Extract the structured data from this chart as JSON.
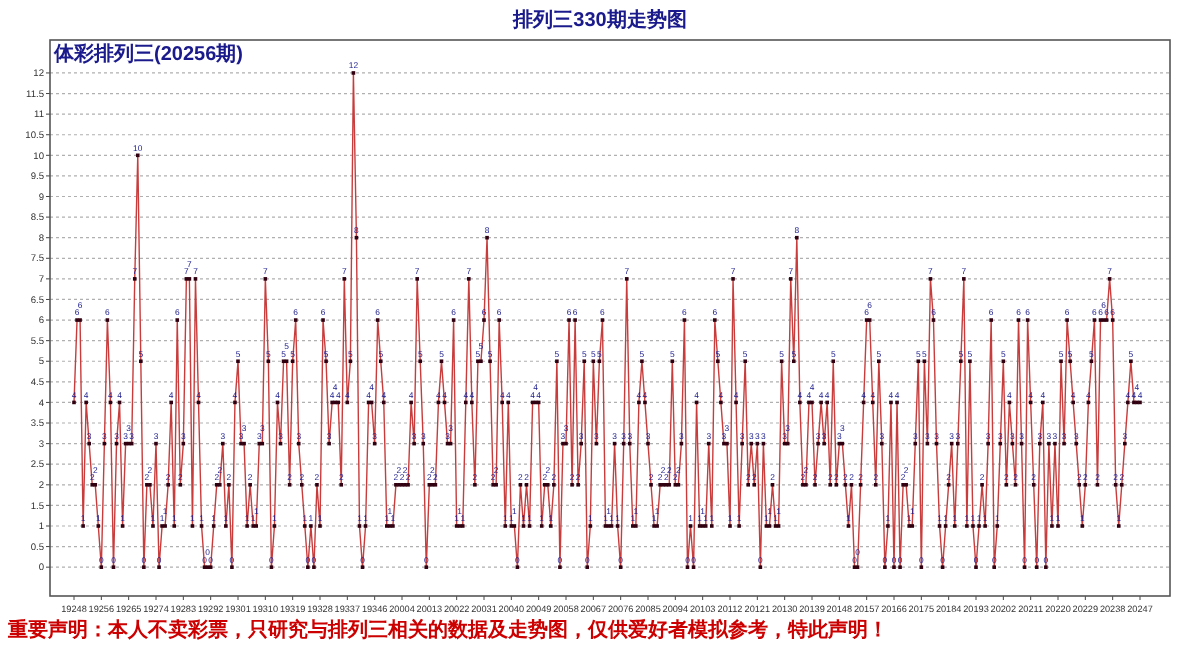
{
  "chart_data": {
    "type": "line",
    "title": "排列三330期走势图",
    "subtitle": "体彩排列三(20256期)",
    "annotations": [
      "重要声明：本人不卖彩票，只研究与排列三相关的数据及走势图，仅供爱好者模拟参考，特此声明！"
    ],
    "categories": [
      "19248",
      null,
      null,
      null,
      null,
      null,
      null,
      null,
      null,
      "19256",
      null,
      null,
      null,
      null,
      null,
      null,
      null,
      null,
      "19265",
      null,
      null,
      null,
      null,
      null,
      null,
      null,
      null,
      "19274",
      null,
      null,
      null,
      null,
      null,
      null,
      null,
      null,
      "19283",
      null,
      null,
      null,
      null,
      null,
      null,
      null,
      null,
      "19292",
      null,
      null,
      null,
      null,
      null,
      null,
      null,
      null,
      "19301",
      null,
      null,
      null,
      null,
      null,
      null,
      null,
      null,
      "19310",
      null,
      null,
      null,
      null,
      null,
      null,
      null,
      null,
      "19319",
      null,
      null,
      null,
      null,
      null,
      null,
      null,
      null,
      "19328",
      null,
      null,
      null,
      null,
      null,
      null,
      null,
      null,
      "19337",
      null,
      null,
      null,
      null,
      null,
      null,
      null,
      null,
      "19346",
      null,
      null,
      null,
      null,
      null,
      null,
      null,
      null,
      "20004",
      null,
      null,
      null,
      null,
      null,
      null,
      null,
      null,
      "20013",
      null,
      null,
      null,
      null,
      null,
      null,
      null,
      null,
      "20022",
      null,
      null,
      null,
      null,
      null,
      null,
      null,
      null,
      "20031",
      null,
      null,
      null,
      null,
      null,
      null,
      null,
      null,
      "20040",
      null,
      null,
      null,
      null,
      null,
      null,
      null,
      null,
      "20049",
      null,
      null,
      null,
      null,
      null,
      null,
      null,
      null,
      "20058",
      null,
      null,
      null,
      null,
      null,
      null,
      null,
      null,
      "20067",
      null,
      null,
      null,
      null,
      null,
      null,
      null,
      null,
      "20076",
      null,
      null,
      null,
      null,
      null,
      null,
      null,
      null,
      "20085",
      null,
      null,
      null,
      null,
      null,
      null,
      null,
      null,
      "20094",
      null,
      null,
      null,
      null,
      null,
      null,
      null,
      null,
      "20103",
      null,
      null,
      null,
      null,
      null,
      null,
      null,
      null,
      "20112",
      null,
      null,
      null,
      null,
      null,
      null,
      null,
      null,
      "20121",
      null,
      null,
      null,
      null,
      null,
      null,
      null,
      null,
      "20130",
      null,
      null,
      null,
      null,
      null,
      null,
      null,
      null,
      "20139",
      null,
      null,
      null,
      null,
      null,
      null,
      null,
      null,
      "20148",
      null,
      null,
      null,
      null,
      null,
      null,
      null,
      null,
      "20157",
      null,
      null,
      null,
      null,
      null,
      null,
      null,
      null,
      "20166",
      null,
      null,
      null,
      null,
      null,
      null,
      null,
      null,
      "20175",
      null,
      null,
      null,
      null,
      null,
      null,
      null,
      null,
      "20184",
      null,
      null,
      null,
      null,
      null,
      null,
      null,
      null,
      "20193",
      null,
      null,
      null,
      null,
      null,
      null,
      null,
      null,
      "20202",
      null,
      null,
      null,
      null,
      null,
      null,
      null,
      null,
      "20211",
      null,
      null,
      null,
      null,
      null,
      null,
      null,
      null,
      "20220",
      null,
      null,
      null,
      null,
      null,
      null,
      null,
      null,
      "20229",
      null,
      null,
      null,
      null,
      null,
      null,
      null,
      null,
      "20238",
      null,
      null,
      null,
      null,
      null,
      null,
      null,
      null,
      "20247"
    ],
    "ylim": [
      -0.7,
      12.8
    ],
    "yticks": [
      0,
      0.5,
      1,
      1.5,
      2,
      2.5,
      3,
      3.5,
      4,
      4.5,
      5,
      5.5,
      6,
      6.5,
      7,
      7.5,
      8,
      8.5,
      9,
      9.5,
      10,
      10.5,
      11,
      11.5,
      12
    ],
    "grid": "y",
    "marker": "square",
    "data_labels": true,
    "series": [
      {
        "color": "#c83c3c",
        "values": [
          4,
          6,
          6,
          1,
          4,
          3,
          2,
          2,
          1,
          0,
          3,
          6,
          4,
          0,
          3,
          4,
          1,
          3,
          3,
          3,
          7,
          10,
          5,
          0,
          2,
          2,
          1,
          3,
          0,
          1,
          1,
          2,
          4,
          1,
          6,
          2,
          3,
          7,
          7,
          1,
          7,
          4,
          1,
          0,
          0,
          0,
          1,
          2,
          2,
          3,
          1,
          2,
          0,
          4,
          5,
          3,
          3,
          1,
          2,
          1,
          1,
          3,
          3,
          7,
          5,
          0,
          1,
          4,
          3,
          5,
          5,
          2,
          5,
          6,
          3,
          2,
          1,
          0,
          1,
          0,
          2,
          1,
          6,
          5,
          3,
          4,
          4,
          4,
          2,
          7,
          4,
          5,
          12,
          8,
          1,
          0,
          1,
          4,
          4,
          3,
          6,
          5,
          4,
          1,
          1,
          1,
          2,
          2,
          2,
          2,
          2,
          4,
          3,
          7,
          5,
          3,
          0,
          2,
          2,
          2,
          4,
          5,
          4,
          3,
          3,
          6,
          1,
          1,
          1,
          4,
          7,
          4,
          2,
          5,
          5,
          6,
          8,
          5,
          2,
          2,
          6,
          4,
          1,
          4,
          1,
          1,
          0,
          2,
          1,
          2,
          1,
          4,
          4,
          4,
          1,
          2,
          2,
          1,
          2,
          5,
          0,
          3,
          3,
          6,
          2,
          6,
          2,
          3,
          5,
          0,
          1,
          5,
          3,
          5,
          6,
          1,
          1,
          1,
          3,
          1,
          0,
          3,
          7,
          3,
          1,
          1,
          4,
          5,
          4,
          3,
          2,
          1,
          1,
          2,
          2,
          2,
          2,
          5,
          2,
          2,
          3,
          6,
          0,
          1,
          0,
          4,
          1,
          1,
          1,
          3,
          1,
          6,
          5,
          4,
          3,
          3,
          1,
          7,
          4,
          1,
          3,
          5,
          2,
          3,
          2,
          3,
          0,
          3,
          1,
          1,
          2,
          1,
          1,
          5,
          3,
          3,
          7,
          5,
          8,
          4,
          2,
          2,
          4,
          4,
          2,
          3,
          4,
          3,
          4,
          2,
          5,
          2,
          3,
          3,
          2,
          1,
          2,
          0,
          0,
          2,
          4,
          6,
          6,
          4,
          2,
          5,
          3,
          0,
          1,
          4,
          0,
          4,
          0,
          2,
          2,
          1,
          1,
          3,
          5,
          0,
          5,
          3,
          7,
          6,
          3,
          1,
          0,
          1,
          2,
          3,
          1,
          3,
          5,
          7,
          1,
          5,
          1,
          0,
          1,
          2,
          1,
          3,
          6,
          0,
          1,
          3,
          5,
          2,
          4,
          3,
          2,
          6,
          3,
          0,
          6,
          4,
          2,
          0,
          3,
          4,
          0,
          3,
          1,
          3,
          1,
          5,
          3,
          6,
          5,
          4,
          3,
          2,
          1,
          2,
          4,
          5,
          6,
          2,
          6,
          6,
          6,
          7,
          6,
          2,
          1,
          2,
          3,
          4,
          5,
          4,
          4,
          4
        ]
      }
    ]
  }
}
